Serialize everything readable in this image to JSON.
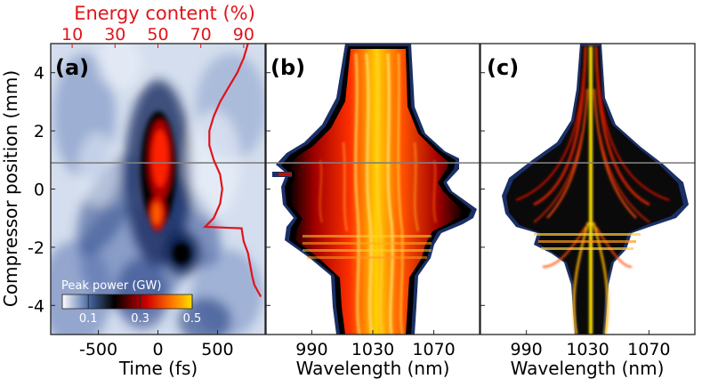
{
  "figure": {
    "top_axis_label": "Energy content (%)",
    "top_ticks": [
      "10",
      "30",
      "50",
      "70",
      "90"
    ],
    "y_label": "Compressor position (mm)",
    "y_ticks": [
      "4",
      "2",
      "0",
      "-2",
      "-4"
    ],
    "colorbar": {
      "title": "Peak power (GW)",
      "ticks": [
        "0.1",
        "0.3",
        "0.5"
      ]
    }
  },
  "panels": [
    {
      "label": "(a)",
      "xlabel": "Time (fs)",
      "xticks": [
        "-500",
        "0",
        "500"
      ]
    },
    {
      "label": "(b)",
      "xlabel": "Wavelength (nm)",
      "xticks": [
        "990",
        "1030",
        "1070"
      ]
    },
    {
      "label": "(c)",
      "xlabel": "Wavelength (nm)",
      "xticks": [
        "990",
        "1030",
        "1070"
      ]
    }
  ],
  "colors": {
    "energy_line": "#e0141a",
    "marker_line": "#808080",
    "dark_navy": "#0b1f4a"
  },
  "chart_data": [
    {
      "type": "heatmap",
      "panel": "(a)",
      "xlabel": "Time (fs)",
      "ylabel": "Compressor position (mm)",
      "xlim": [
        -900,
        900
      ],
      "ylim": [
        -5,
        5
      ],
      "colorbar": {
        "label": "Peak power (GW)",
        "range": [
          0,
          0.5
        ],
        "ticks": [
          0.1,
          0.3,
          0.5
        ]
      },
      "overlay_series": {
        "name": "Energy content (%)",
        "axis_range": [
          0,
          100
        ],
        "axis_ticks": [
          10,
          30,
          50,
          70,
          90
        ],
        "points": [
          [
            92,
            5
          ],
          [
            90,
            4.5
          ],
          [
            87,
            4.0
          ],
          [
            83,
            3.5
          ],
          [
            79,
            3.0
          ],
          [
            76,
            2.5
          ],
          [
            74,
            2.0
          ],
          [
            74,
            1.5
          ],
          [
            76,
            1.0
          ],
          [
            79,
            0.5
          ],
          [
            80,
            0
          ],
          [
            79,
            -0.5
          ],
          [
            76,
            -1.0
          ],
          [
            72,
            -1.3
          ],
          [
            89,
            -1.35
          ],
          [
            90,
            -1.8
          ],
          [
            92,
            -2.2
          ],
          [
            93,
            -2.6
          ],
          [
            94,
            -3.0
          ],
          [
            95,
            -3.3
          ],
          [
            98,
            -3.7
          ]
        ]
      },
      "marker_y": 0.9
    },
    {
      "type": "heatmap",
      "panel": "(b)",
      "xlabel": "Wavelength (nm)",
      "ylabel": "Compressor position (mm)",
      "xlim": [
        960,
        1100
      ],
      "ylim": [
        -5,
        5
      ],
      "xticks": [
        990,
        1030,
        1070
      ],
      "marker_y": 0.9
    },
    {
      "type": "heatmap",
      "panel": "(c)",
      "xlabel": "Wavelength (nm)",
      "ylabel": "Compressor position (mm)",
      "xlim": [
        960,
        1100
      ],
      "ylim": [
        -5,
        5
      ],
      "xticks": [
        990,
        1030,
        1070
      ],
      "marker_y": 0.9
    }
  ]
}
